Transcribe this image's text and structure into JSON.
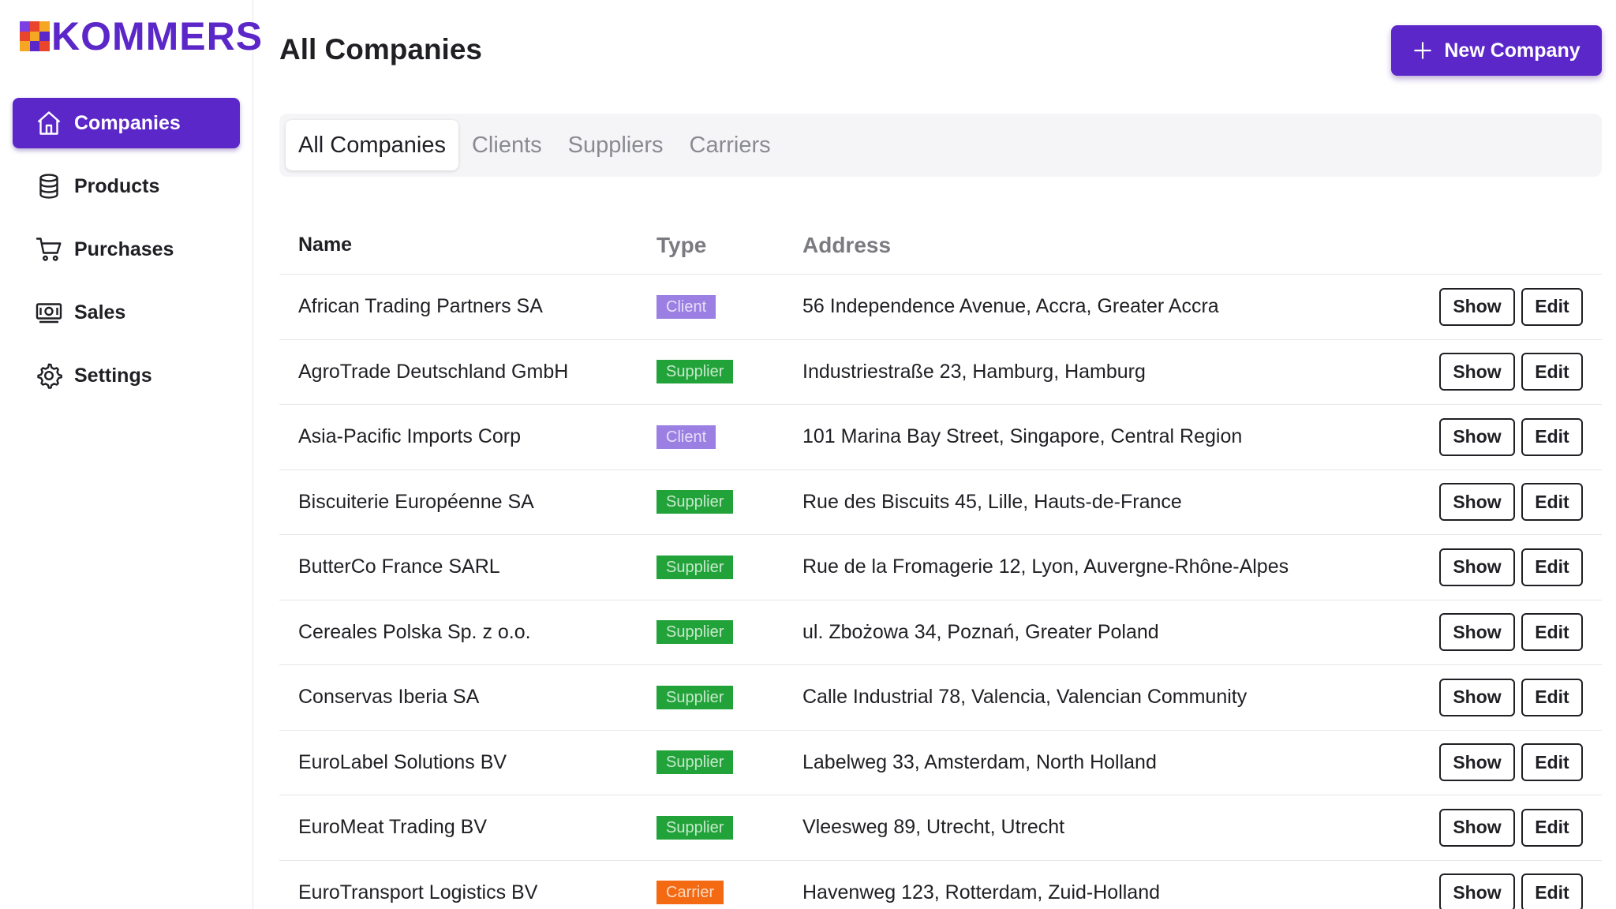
{
  "brand": {
    "name": "KOMMERS",
    "logo_colors": [
      "#f5a623",
      "#7b3fe4",
      "#e8452c",
      "#5b27c9",
      "#f0c93a"
    ]
  },
  "sidebar": {
    "items": [
      {
        "label": "Companies",
        "icon": "home-icon",
        "active": true
      },
      {
        "label": "Products",
        "icon": "database-icon",
        "active": false
      },
      {
        "label": "Purchases",
        "icon": "cart-icon",
        "active": false
      },
      {
        "label": "Sales",
        "icon": "money-icon",
        "active": false
      },
      {
        "label": "Settings",
        "icon": "gear-icon",
        "active": false
      }
    ]
  },
  "header": {
    "title": "All Companies",
    "new_button_label": "New Company"
  },
  "tabs": [
    {
      "label": "All Companies",
      "active": true
    },
    {
      "label": "Clients",
      "active": false
    },
    {
      "label": "Suppliers",
      "active": false
    },
    {
      "label": "Carriers",
      "active": false
    }
  ],
  "table": {
    "columns": {
      "name": "Name",
      "type": "Type",
      "address": "Address"
    },
    "actions": {
      "show": "Show",
      "edit": "Edit"
    },
    "type_colors": {
      "Client": "#9b7fe3",
      "Supplier": "#22a33a",
      "Carrier": "#f36a12"
    },
    "rows": [
      {
        "name": "African Trading Partners SA",
        "type": "Client",
        "address": "56 Independence Avenue, Accra, Greater Accra"
      },
      {
        "name": "AgroTrade Deutschland GmbH",
        "type": "Supplier",
        "address": "Industriestraße 23, Hamburg, Hamburg"
      },
      {
        "name": "Asia-Pacific Imports Corp",
        "type": "Client",
        "address": "101 Marina Bay Street, Singapore, Central Region"
      },
      {
        "name": "Biscuiterie Européenne SA",
        "type": "Supplier",
        "address": "Rue des Biscuits 45, Lille, Hauts-de-France"
      },
      {
        "name": "ButterCo France SARL",
        "type": "Supplier",
        "address": "Rue de la Fromagerie 12, Lyon, Auvergne-Rhône-Alpes"
      },
      {
        "name": "Cereales Polska Sp. z o.o.",
        "type": "Supplier",
        "address": "ul. Zbożowa 34, Poznań, Greater Poland"
      },
      {
        "name": "Conservas Iberia SA",
        "type": "Supplier",
        "address": "Calle Industrial 78, Valencia, Valencian Community"
      },
      {
        "name": "EuroLabel Solutions BV",
        "type": "Supplier",
        "address": "Labelweg 33, Amsterdam, North Holland"
      },
      {
        "name": "EuroMeat Trading BV",
        "type": "Supplier",
        "address": "Vleesweg 89, Utrecht, Utrecht"
      },
      {
        "name": "EuroTransport Logistics BV",
        "type": "Carrier",
        "address": "Havenweg 123, Rotterdam, Zuid-Holland"
      }
    ]
  }
}
